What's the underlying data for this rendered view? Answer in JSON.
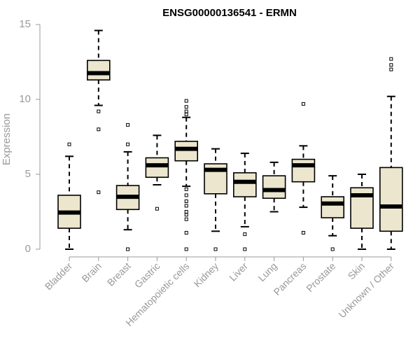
{
  "chart_data": {
    "type": "boxplot",
    "title": "ENSG00000136541 - ERMN",
    "xlabel": "",
    "ylabel": "Expression",
    "ylim": [
      0,
      15
    ],
    "yticks": [
      0,
      5,
      10,
      15
    ],
    "grid": false,
    "legend": "none",
    "box_fill": "#ece6cf",
    "categories": [
      "Bladder",
      "Brain",
      "Breast",
      "Gastric",
      "Hematopoietic cells",
      "Kidney",
      "Liver",
      "Lung",
      "Pancreas",
      "Prostate",
      "Skin",
      "Unknown / Other"
    ],
    "boxes": [
      {
        "min": 0.0,
        "q1": 1.4,
        "median": 2.45,
        "q3": 3.6,
        "max": 6.2,
        "outliers": [
          7.0
        ]
      },
      {
        "min": 9.6,
        "q1": 11.3,
        "median": 11.75,
        "q3": 12.6,
        "max": 14.6,
        "outliers": [
          9.2,
          8.0,
          3.8
        ]
      },
      {
        "min": 1.3,
        "q1": 2.65,
        "median": 3.5,
        "q3": 4.25,
        "max": 6.5,
        "outliers": [
          7.0,
          8.3,
          0.0
        ]
      },
      {
        "min": 4.3,
        "q1": 4.8,
        "median": 5.6,
        "q3": 6.1,
        "max": 7.6,
        "outliers": [
          2.7
        ]
      },
      {
        "min": 4.2,
        "q1": 5.9,
        "median": 6.7,
        "q3": 7.2,
        "max": 8.8,
        "outliers": [
          9.9,
          9.5,
          9.2,
          9.0,
          4.0,
          3.6,
          3.2,
          2.9,
          2.5,
          2.3,
          2.0,
          1.1,
          0.0
        ]
      },
      {
        "min": 1.2,
        "q1": 3.7,
        "median": 5.3,
        "q3": 5.7,
        "max": 6.7,
        "outliers": [
          0.0
        ]
      },
      {
        "min": 1.5,
        "q1": 3.5,
        "median": 4.5,
        "q3": 5.1,
        "max": 6.4,
        "outliers": [
          1.0,
          0.0
        ]
      },
      {
        "min": 2.5,
        "q1": 3.4,
        "median": 3.95,
        "q3": 4.9,
        "max": 5.8,
        "outliers": []
      },
      {
        "min": 2.8,
        "q1": 4.5,
        "median": 5.6,
        "q3": 6.0,
        "max": 6.9,
        "outliers": [
          9.7,
          1.1
        ]
      },
      {
        "min": 0.9,
        "q1": 2.1,
        "median": 3.05,
        "q3": 3.5,
        "max": 4.9,
        "outliers": [
          0.0
        ]
      },
      {
        "min": 0.0,
        "q1": 1.4,
        "median": 3.6,
        "q3": 4.1,
        "max": 5.0,
        "outliers": []
      },
      {
        "min": 0.0,
        "q1": 1.2,
        "median": 2.85,
        "q3": 5.45,
        "max": 10.2,
        "outliers": [
          12.0,
          12.3,
          12.7
        ]
      }
    ]
  }
}
